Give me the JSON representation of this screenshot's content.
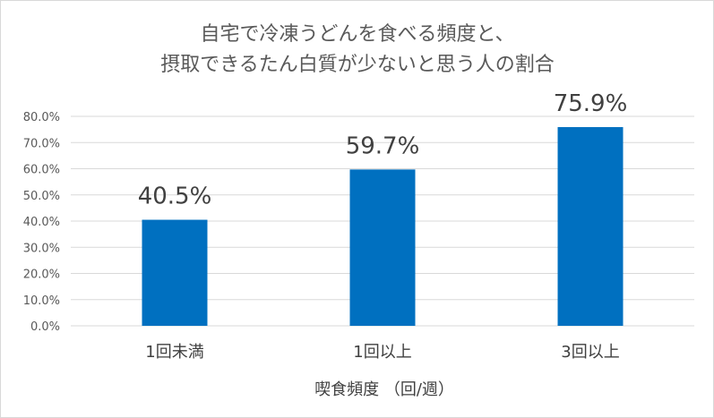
{
  "chart_data": {
    "type": "bar",
    "title": [
      "自宅で冷凍うどんを食べる頻度と、",
      "摂取できるたん白質が少ないと思う人の割合"
    ],
    "xlabel": "喫食頻度 （回/週）",
    "ylabel": "",
    "categories": [
      "1回未満",
      "1回以上",
      "3回以上"
    ],
    "values": [
      40.5,
      59.7,
      75.9
    ],
    "data_labels": [
      "40.5%",
      "59.7%",
      "75.9%"
    ],
    "ylim": [
      0,
      80
    ],
    "yticks": [
      "0.0%",
      "10.0%",
      "20.0%",
      "30.0%",
      "40.0%",
      "50.0%",
      "60.0%",
      "70.0%",
      "80.0%"
    ],
    "grid": true,
    "legend": "none",
    "bar_color": "#0070c0",
    "grid_color": "#d9d9d9"
  }
}
